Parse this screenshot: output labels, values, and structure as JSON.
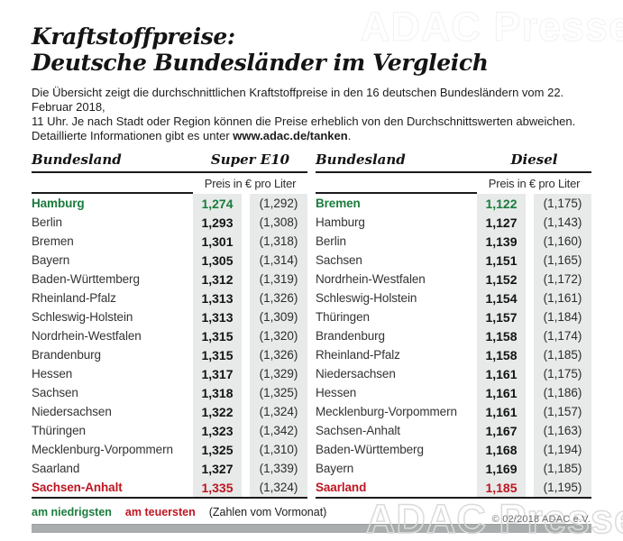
{
  "title": {
    "line1": "Kraftstoffpreise:",
    "line2": "Deutsche Bundesländer im Vergleich"
  },
  "intro": {
    "line1": "Die Übersicht zeigt die durchschnittlichen Kraftstoffpreise in den 16 deutschen Bundesländern vom 22. Februar 2018,",
    "line2": "11 Uhr. Je nach Stadt oder Region können die Preise erheblich von den Durchschnittswerten abweichen.",
    "line3_prefix": "Detaillierte Informationen gibt es unter ",
    "link": "www.adac.de/tanken",
    "line3_suffix": "."
  },
  "columns": {
    "region_header": "Bundesland",
    "price_subheader": "Preis in € pro Liter"
  },
  "tables": [
    {
      "fuel": "Super E10",
      "rows": [
        {
          "name": "Hamburg",
          "price": "1,274",
          "prev": "(1,292)",
          "highlight": "lowest"
        },
        {
          "name": "Berlin",
          "price": "1,293",
          "prev": "(1,308)"
        },
        {
          "name": "Bremen",
          "price": "1,301",
          "prev": "(1,318)"
        },
        {
          "name": "Bayern",
          "price": "1,305",
          "prev": "(1,314)"
        },
        {
          "name": "Baden-Württemberg",
          "price": "1,312",
          "prev": "(1,319)"
        },
        {
          "name": "Rheinland-Pfalz",
          "price": "1,313",
          "prev": "(1,326)"
        },
        {
          "name": "Schleswig-Holstein",
          "price": "1,313",
          "prev": "(1,309)"
        },
        {
          "name": "Nordrhein-Westfalen",
          "price": "1,315",
          "prev": "(1,320)"
        },
        {
          "name": "Brandenburg",
          "price": "1,315",
          "prev": "(1,326)"
        },
        {
          "name": "Hessen",
          "price": "1,317",
          "prev": "(1,329)"
        },
        {
          "name": "Sachsen",
          "price": "1,318",
          "prev": "(1,325)"
        },
        {
          "name": "Niedersachsen",
          "price": "1,322",
          "prev": "(1,324)"
        },
        {
          "name": "Thüringen",
          "price": "1,323",
          "prev": "(1,342)"
        },
        {
          "name": "Mecklenburg-Vorpommern",
          "price": "1,325",
          "prev": "(1,310)"
        },
        {
          "name": "Saarland",
          "price": "1,327",
          "prev": "(1,339)"
        },
        {
          "name": "Sachsen-Anhalt",
          "price": "1,335",
          "prev": "(1,324)",
          "highlight": "highest"
        }
      ]
    },
    {
      "fuel": "Diesel",
      "rows": [
        {
          "name": "Bremen",
          "price": "1,122",
          "prev": "(1,175)",
          "highlight": "lowest"
        },
        {
          "name": "Hamburg",
          "price": "1,127",
          "prev": "(1,143)"
        },
        {
          "name": "Berlin",
          "price": "1,139",
          "prev": "(1,160)"
        },
        {
          "name": "Sachsen",
          "price": "1,151",
          "prev": "(1,165)"
        },
        {
          "name": "Nordrhein-Westfalen",
          "price": "1,152",
          "prev": "(1,172)"
        },
        {
          "name": "Schleswig-Holstein",
          "price": "1,154",
          "prev": "(1,161)"
        },
        {
          "name": "Thüringen",
          "price": "1,157",
          "prev": "(1,184)"
        },
        {
          "name": "Brandenburg",
          "price": "1,158",
          "prev": "(1,174)"
        },
        {
          "name": "Rheinland-Pfalz",
          "price": "1,158",
          "prev": "(1,185)"
        },
        {
          "name": "Niedersachsen",
          "price": "1,161",
          "prev": "(1,175)"
        },
        {
          "name": "Hessen",
          "price": "1,161",
          "prev": "(1,186)"
        },
        {
          "name": "Mecklenburg-Vorpommern",
          "price": "1,161",
          "prev": "(1,157)"
        },
        {
          "name": "Sachsen-Anhalt",
          "price": "1,167",
          "prev": "(1,163)"
        },
        {
          "name": "Baden-Württemberg",
          "price": "1,168",
          "prev": "(1,194)"
        },
        {
          "name": "Bayern",
          "price": "1,169",
          "prev": "(1,185)"
        },
        {
          "name": "Saarland",
          "price": "1,185",
          "prev": "(1,195)",
          "highlight": "highest"
        }
      ]
    }
  ],
  "legend": {
    "lowest": "am niedrigsten",
    "highest": "am teuersten",
    "note": "(Zahlen vom Vormonat)"
  },
  "watermark": "ADAC Presse",
  "copyright": "© 02/2018 ADAC e.V.",
  "colors": {
    "lowest": "#1a7c3d",
    "highest": "#be1622",
    "price_col_bg": "#e7eae8",
    "bar": "#a9adad"
  },
  "chart_data": [
    {
      "type": "table",
      "title": "Super E10",
      "subtitle": "Preis in € pro Liter",
      "columns": [
        "Bundesland",
        "Preis in € pro Liter",
        "Zahlen vom Vormonat"
      ],
      "rows": [
        [
          "Hamburg",
          1.274,
          1.292
        ],
        [
          "Berlin",
          1.293,
          1.308
        ],
        [
          "Bremen",
          1.301,
          1.318
        ],
        [
          "Bayern",
          1.305,
          1.314
        ],
        [
          "Baden-Württemberg",
          1.312,
          1.319
        ],
        [
          "Rheinland-Pfalz",
          1.313,
          1.326
        ],
        [
          "Schleswig-Holstein",
          1.313,
          1.309
        ],
        [
          "Nordrhein-Westfalen",
          1.315,
          1.32
        ],
        [
          "Brandenburg",
          1.315,
          1.326
        ],
        [
          "Hessen",
          1.317,
          1.329
        ],
        [
          "Sachsen",
          1.318,
          1.325
        ],
        [
          "Niedersachsen",
          1.322,
          1.324
        ],
        [
          "Thüringen",
          1.323,
          1.342
        ],
        [
          "Mecklenburg-Vorpommern",
          1.325,
          1.31
        ],
        [
          "Saarland",
          1.327,
          1.339
        ],
        [
          "Sachsen-Anhalt",
          1.335,
          1.324
        ]
      ],
      "annotations": {
        "lowest": "Hamburg",
        "highest": "Sachsen-Anhalt"
      }
    },
    {
      "type": "table",
      "title": "Diesel",
      "subtitle": "Preis in € pro Liter",
      "columns": [
        "Bundesland",
        "Preis in € pro Liter",
        "Zahlen vom Vormonat"
      ],
      "rows": [
        [
          "Bremen",
          1.122,
          1.175
        ],
        [
          "Hamburg",
          1.127,
          1.143
        ],
        [
          "Berlin",
          1.139,
          1.16
        ],
        [
          "Sachsen",
          1.151,
          1.165
        ],
        [
          "Nordrhein-Westfalen",
          1.152,
          1.172
        ],
        [
          "Schleswig-Holstein",
          1.154,
          1.161
        ],
        [
          "Thüringen",
          1.157,
          1.184
        ],
        [
          "Brandenburg",
          1.158,
          1.174
        ],
        [
          "Rheinland-Pfalz",
          1.158,
          1.185
        ],
        [
          "Niedersachsen",
          1.161,
          1.175
        ],
        [
          "Hessen",
          1.161,
          1.186
        ],
        [
          "Mecklenburg-Vorpommern",
          1.161,
          1.157
        ],
        [
          "Sachsen-Anhalt",
          1.167,
          1.163
        ],
        [
          "Baden-Württemberg",
          1.168,
          1.194
        ],
        [
          "Bayern",
          1.169,
          1.185
        ],
        [
          "Saarland",
          1.185,
          1.195
        ]
      ],
      "annotations": {
        "lowest": "Bremen",
        "highest": "Saarland"
      }
    }
  ]
}
